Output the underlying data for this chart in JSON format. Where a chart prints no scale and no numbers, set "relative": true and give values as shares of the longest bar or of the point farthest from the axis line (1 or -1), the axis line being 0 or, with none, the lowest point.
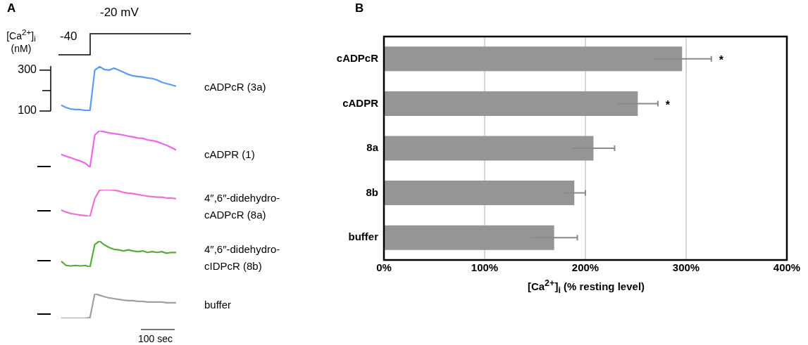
{
  "chart_data": [
    {
      "type": "line",
      "title": "A",
      "ylabel": "[Ca$^{2+}$]$_{i}$ (nM)",
      "annotations": [
        "-40",
        "-20 mV"
      ],
      "categories": [
        null,
        null,
        null,
        null,
        null,
        null,
        null,
        null,
        null,
        null,
        null,
        null,
        null,
        null,
        null,
        null,
        null,
        null,
        null,
        null,
        null,
        null,
        null,
        null,
        null
      ],
      "ylim": [
        100,
        320
      ],
      "yticks": [
        100,
        {
          "value": 200,
          "label": null
        },
        300
      ],
      "tick_labels": "y",
      "legend": false,
      "series": [
        {
          "name": "cADPcR (3a)",
          "color": "#5b9cf0",
          "values": [
            128,
            117,
            110,
            107,
            107,
            103,
            103,
            300,
            317,
            303,
            300,
            310,
            300,
            290,
            279,
            272,
            269,
            266,
            262,
            259,
            252,
            241,
            234,
            228,
            221
          ]
        }
      ]
    },
    {
      "type": "line",
      "relative": true,
      "categories": [
        null,
        null,
        null,
        null,
        null,
        null,
        null,
        null,
        null,
        null,
        null,
        null,
        null,
        null,
        null,
        null,
        null,
        null,
        null,
        null,
        null,
        null,
        null,
        null,
        null
      ],
      "legend": false,
      "series": [
        {
          "name": "cADPR (1)",
          "color": "#ee66ee",
          "values": [
            0.35,
            0.3,
            0.26,
            0.21,
            0.17,
            0.11,
            0,
            0.88,
            1,
            0.97,
            0.94,
            0.92,
            0.9,
            0.88,
            0.85,
            0.83,
            0.8,
            0.79,
            0.75,
            0.73,
            0.7,
            0.65,
            0.6,
            0.54,
            0.47
          ]
        }
      ]
    },
    {
      "type": "line",
      "relative": true,
      "categories": [
        null,
        null,
        null,
        null,
        null,
        null,
        null,
        null,
        null,
        null,
        null,
        null,
        null,
        null,
        null,
        null,
        null,
        null,
        null,
        null,
        null,
        null,
        null,
        null,
        null
      ],
      "legend": false,
      "series": [
        {
          "name": "4″,6″-didehydro-cADPcR (8a)",
          "color": "#f070d0",
          "values": [
            0.24,
            0.16,
            0.11,
            0.08,
            0.05,
            0.03,
            0,
            0.67,
            0.98,
            1,
            1,
            0.98,
            0.95,
            0.9,
            0.87,
            0.85,
            0.82,
            0.79,
            0.76,
            0.74,
            0.72,
            0.72,
            0.69,
            0.69,
            0.66
          ]
        }
      ]
    },
    {
      "type": "line",
      "relative": true,
      "categories": [
        null,
        null,
        null,
        null,
        null,
        null,
        null,
        null,
        null,
        null,
        null,
        null,
        null,
        null,
        null,
        null,
        null,
        null,
        null,
        null,
        null,
        null,
        null,
        null,
        null
      ],
      "legend": false,
      "series": [
        {
          "name": "4″,6″-didehydro-cIDPcR (8b)",
          "color": "#5aaa3a",
          "values": [
            0.22,
            0.06,
            0.04,
            0.06,
            0.04,
            0.06,
            0,
            0.87,
            1,
            0.85,
            0.75,
            0.68,
            0.66,
            0.62,
            0.66,
            0.62,
            0.59,
            0.62,
            0.56,
            0.59,
            0.56,
            0.59,
            0.53,
            0.56,
            0.56
          ]
        }
      ]
    },
    {
      "type": "line",
      "relative": true,
      "annotations": [
        "100 sec"
      ],
      "categories": [
        null,
        null,
        null,
        null,
        null,
        null,
        null,
        null,
        null,
        null,
        null,
        null,
        null,
        null,
        null,
        null,
        null,
        null,
        null,
        null,
        null,
        null,
        null,
        null,
        null
      ],
      "legend": false,
      "series": [
        {
          "name": "buffer",
          "color": "#a0a0a0",
          "values": [
            0,
            0,
            0,
            0,
            0,
            0,
            0.03,
            1,
            0.94,
            0.88,
            0.83,
            0.8,
            0.77,
            0.74,
            0.72,
            0.72,
            0.69,
            0.69,
            0.66,
            0.66,
            0.66,
            0.66,
            0.63,
            0.63,
            0.63
          ]
        }
      ]
    },
    {
      "type": "bar",
      "title": "B",
      "orientation": "horizontal",
      "xlabel": "[Ca$^{2+}$]$_{i}$  (% resting level)",
      "categories": [
        "cADPcR",
        "cADPR",
        "8a",
        "8b",
        "buffer"
      ],
      "values": [
        296,
        252,
        208,
        189,
        169
      ],
      "errors": [
        29,
        20,
        21,
        11,
        23
      ],
      "color": "#959595",
      "xlim": [
        0,
        400
      ],
      "xticks": [
        {
          "value": 0,
          "label": "0%"
        },
        {
          "value": 100,
          "label": "100%"
        },
        {
          "value": 200,
          "label": "200%"
        },
        {
          "value": 300,
          "label": "300%"
        },
        {
          "value": 400,
          "label": "400%"
        }
      ],
      "grid": "x",
      "legend": false,
      "annotations": [
        "*",
        "*"
      ]
    }
  ]
}
